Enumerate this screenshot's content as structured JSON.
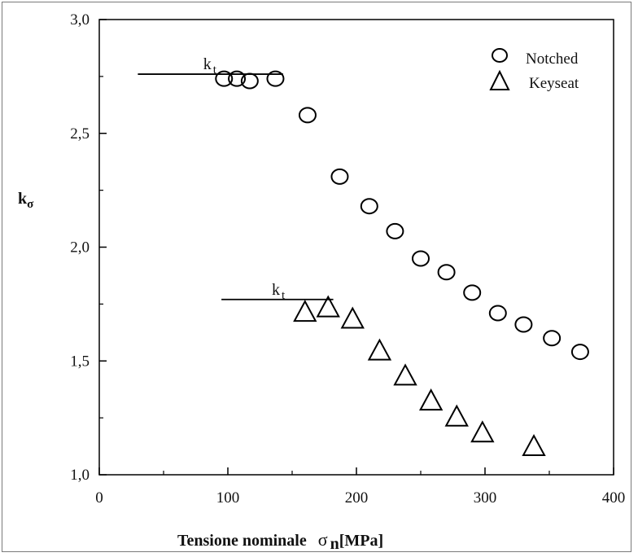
{
  "chart_data": {
    "type": "scatter",
    "title": "",
    "xlabel": "Tensione nominale",
    "xlabel_symbol": "σ",
    "xlabel_subscript": "n",
    "xlabel_unit": "[MPa]",
    "ylabel": "k",
    "ylabel_subscript": "σ",
    "xlim": [
      0,
      400
    ],
    "ylim": [
      1.0,
      3.0
    ],
    "x_ticks": [
      0,
      100,
      200,
      300,
      400
    ],
    "x_tick_labels": [
      "0",
      "100",
      "200",
      "300",
      "400"
    ],
    "y_ticks": [
      1.0,
      1.5,
      2.0,
      2.5,
      3.0
    ],
    "y_tick_labels": [
      "1,0",
      "1,5",
      "2,0",
      "2,5",
      "3,0"
    ],
    "grid": false,
    "legend_position": "top-right",
    "series": [
      {
        "name": "Notched",
        "marker": "circle",
        "x": [
          97,
          107,
          117,
          137,
          162,
          187,
          210,
          230,
          250,
          270,
          290,
          310,
          330,
          352,
          374
        ],
        "y": [
          2.74,
          2.74,
          2.73,
          2.74,
          2.58,
          2.31,
          2.18,
          2.07,
          1.95,
          1.89,
          1.8,
          1.71,
          1.66,
          1.6,
          1.54
        ]
      },
      {
        "name": "Keyseat",
        "marker": "triangle",
        "x": [
          160,
          178,
          197,
          218,
          238,
          258,
          278,
          298,
          338
        ],
        "y": [
          1.71,
          1.73,
          1.68,
          1.54,
          1.43,
          1.32,
          1.25,
          1.18,
          1.12
        ]
      }
    ],
    "annotations": [
      {
        "text": "k",
        "subscript": "t",
        "y": 2.76,
        "x_start": 30,
        "x_end": 143,
        "series": "Notched"
      },
      {
        "text": "k",
        "subscript": "t",
        "y": 1.77,
        "x_start": 95,
        "x_end": 182,
        "series": "Keyseat"
      }
    ]
  }
}
